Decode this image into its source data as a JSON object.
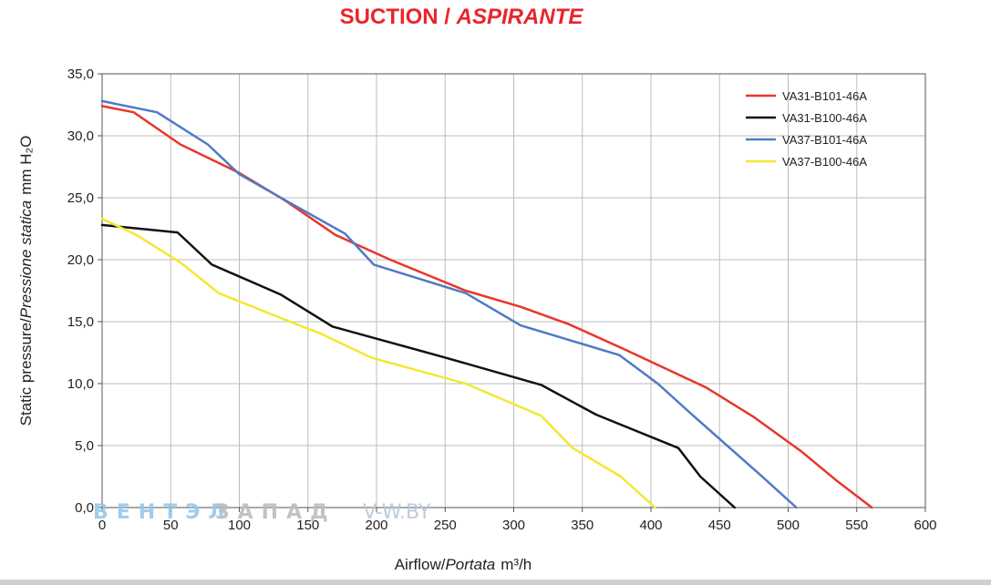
{
  "title": {
    "main": "SUCTION / ",
    "italic": "ASPIRANTE",
    "color": "#e8262a"
  },
  "watermark": {
    "part1": "ВЕНТЭЛ",
    "part2": "ЗАПАД",
    "part3": "V-W.BY"
  },
  "chart_data": {
    "type": "line",
    "title": "SUCTION / ASPIRANTE",
    "xlabel_regular": "Airflow/",
    "xlabel_italic": "Portata",
    "xlabel_unit": "m³/h",
    "ylabel_regular": "Static pressure/",
    "ylabel_italic": "Pressione statica",
    "ylabel_unit": "mm H₂O",
    "xlim": [
      0,
      600
    ],
    "ylim": [
      0,
      35
    ],
    "xticks": [
      0,
      50,
      100,
      150,
      200,
      250,
      300,
      350,
      400,
      450,
      500,
      550,
      600
    ],
    "yticks": [
      0,
      5,
      10,
      15,
      20,
      25,
      30,
      35
    ],
    "ytick_labels": [
      "0,0",
      "5,0",
      "10,0",
      "15,0",
      "20,0",
      "25,0",
      "30,0",
      "35,0"
    ],
    "grid": true,
    "legend_position": "top-right",
    "series": [
      {
        "name": "VA31-B101-46A",
        "color": "#e8362c",
        "points": [
          [
            0,
            32.4
          ],
          [
            23,
            31.9
          ],
          [
            57,
            29.3
          ],
          [
            100,
            27.0
          ],
          [
            133,
            24.8
          ],
          [
            170,
            22.0
          ],
          [
            210,
            20.0
          ],
          [
            265,
            17.5
          ],
          [
            305,
            16.2
          ],
          [
            340,
            14.8
          ],
          [
            380,
            12.8
          ],
          [
            440,
            9.7
          ],
          [
            475,
            7.3
          ],
          [
            510,
            4.5
          ],
          [
            535,
            2.2
          ],
          [
            561,
            0
          ]
        ]
      },
      {
        "name": "VA31-B100-46A",
        "color": "#111111",
        "points": [
          [
            0,
            22.8
          ],
          [
            55,
            22.2
          ],
          [
            80,
            19.6
          ],
          [
            130,
            17.2
          ],
          [
            168,
            14.6
          ],
          [
            250,
            12.1
          ],
          [
            320,
            9.9
          ],
          [
            360,
            7.5
          ],
          [
            420,
            4.8
          ],
          [
            436,
            2.5
          ],
          [
            461,
            0
          ]
        ]
      },
      {
        "name": "VA37-B101-46A",
        "color": "#4f7ac3",
        "points": [
          [
            0,
            32.8
          ],
          [
            40,
            31.9
          ],
          [
            77,
            29.3
          ],
          [
            100,
            26.9
          ],
          [
            135,
            24.7
          ],
          [
            177,
            22.1
          ],
          [
            198,
            19.6
          ],
          [
            265,
            17.3
          ],
          [
            305,
            14.7
          ],
          [
            377,
            12.3
          ],
          [
            405,
            10.0
          ],
          [
            430,
            7.5
          ],
          [
            480,
            2.6
          ],
          [
            506,
            0
          ]
        ]
      },
      {
        "name": "VA37-B100-46A",
        "color": "#f2e831",
        "points": [
          [
            0,
            23.3
          ],
          [
            25,
            22.0
          ],
          [
            58,
            19.7
          ],
          [
            85,
            17.3
          ],
          [
            130,
            15.3
          ],
          [
            160,
            14.0
          ],
          [
            196,
            12.1
          ],
          [
            265,
            10.0
          ],
          [
            320,
            7.4
          ],
          [
            343,
            4.8
          ],
          [
            378,
            2.5
          ],
          [
            403,
            0
          ]
        ]
      }
    ]
  }
}
